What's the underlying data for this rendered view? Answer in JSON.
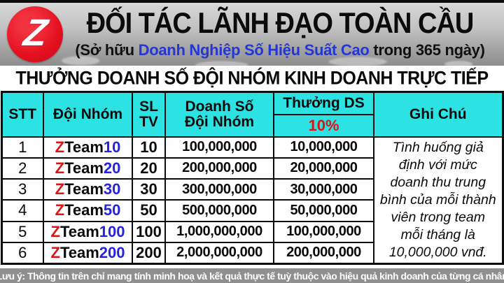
{
  "header": {
    "logo_letter": "Z",
    "title": "ĐỐI TÁC LÃNH ĐẠO TOÀN CẦU",
    "subtitle_prefix": "(Sở hữu ",
    "subtitle_highlight": "Doanh Nghiệp Số Hiệu Suất Cao",
    "subtitle_suffix": " trong 365 ngày)"
  },
  "section_title": "THƯỞNG DOANH SỐ ĐỘI NHÓM KINH DOANH TRỰC TIẾP",
  "table": {
    "columns": {
      "stt": "STT",
      "team": "Đội Nhóm",
      "sl": "SL",
      "tv": "TV",
      "revenue_line1": "Doanh Số",
      "revenue_line2": "Đội Nhóm",
      "bonus": "Thưởng DS",
      "bonus_rate": "10%",
      "note": "Ghi Chú"
    },
    "rows": [
      {
        "stt": "1",
        "team_z": "Z",
        "team_mid": "Team",
        "team_num": "10",
        "members": "10",
        "revenue": "100,000,000",
        "bonus": "10,000,000"
      },
      {
        "stt": "2",
        "team_z": "Z",
        "team_mid": "Team",
        "team_num": "20",
        "members": "20",
        "revenue": "200,000,000",
        "bonus": "20,000,000"
      },
      {
        "stt": "3",
        "team_z": "Z",
        "team_mid": "Team",
        "team_num": "30",
        "members": "30",
        "revenue": "300,000,000",
        "bonus": "30,000,000"
      },
      {
        "stt": "4",
        "team_z": "Z",
        "team_mid": "Team",
        "team_num": "50",
        "members": "50",
        "revenue": "500,000,000",
        "bonus": "50,000,000"
      },
      {
        "stt": "5",
        "team_z": "Z",
        "team_mid": "Team",
        "team_num": "100",
        "members": "100",
        "revenue": "1,000,000,000",
        "bonus": "100,000,000"
      },
      {
        "stt": "6",
        "team_z": "Z",
        "team_mid": "Team",
        "team_num": "200",
        "members": "200",
        "revenue": "2,000,000,000",
        "bonus": "200,000,000"
      }
    ],
    "note_text": "Tình huống giả định với mức doanh thu trung bình của mỗi thành viên trong team mỗi tháng là 10,000,000 vnđ."
  },
  "footer": {
    "note": "(Lưu ý: Thông tin trên chỉ mang tính minh hoạ và kết quả thực tế tuỳ thuộc vào hiệu quả kinh doanh của từng cá nhân)"
  },
  "colors": {
    "logo_red": "#e41120",
    "subtitle_blue": "#2436d6",
    "table_header_cyan": "#2ce2e2",
    "bonus_red": "#dd1414",
    "team_number_blue": "#2424dd",
    "footer_gray": "#8f8f8f"
  }
}
